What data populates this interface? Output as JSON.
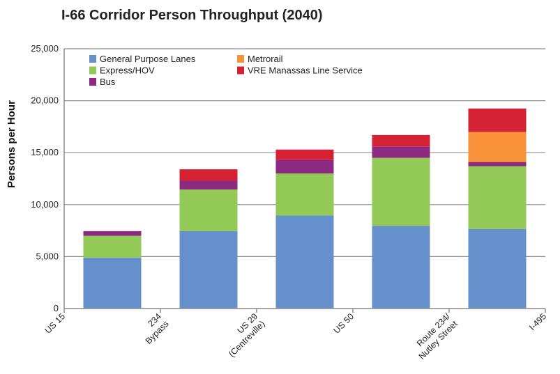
{
  "chart_data": {
    "type": "bar",
    "stacked": true,
    "title": "I-66 Corridor Person Throughput (2040)",
    "xlabel": "",
    "ylabel": "Persons per Hour",
    "ylim": [
      0,
      25000
    ],
    "yticks": [
      0,
      5000,
      10000,
      15000,
      20000,
      25000
    ],
    "ytick_labels": [
      "0",
      "5,000",
      "10,000",
      "15,000",
      "20,000",
      "25,000"
    ],
    "grid": true,
    "legend_position": "top-left",
    "x_tick_labels": [
      [
        "US 15"
      ],
      [
        "234",
        "Bypass"
      ],
      [
        "US 29",
        "(Centreville)"
      ],
      [
        "US 50"
      ],
      [
        "Route 234/",
        "Nutley Street"
      ],
      [
        "I-495"
      ]
    ],
    "segments": [
      "US 15 – 234 Bypass",
      "234 Bypass – US 29",
      "US 29 – US 50",
      "US 50 – Route 234/Nutley Street",
      "Route 234/Nutley Street – I-495"
    ],
    "series": [
      {
        "name": "General Purpose Lanes",
        "color": "#6690cb",
        "values": [
          4900,
          7450,
          8950,
          7950,
          7650
        ]
      },
      {
        "name": "Express/HOV",
        "color": "#92c957",
        "values": [
          2100,
          4000,
          4050,
          6550,
          6050
        ]
      },
      {
        "name": "Bus",
        "color": "#8b2a80",
        "values": [
          450,
          850,
          1300,
          1100,
          400
        ]
      },
      {
        "name": "Metrorail",
        "color": "#f7923a",
        "values": [
          0,
          0,
          0,
          0,
          2900
        ]
      },
      {
        "name": "VRE Manassas Line Service",
        "color": "#d42234",
        "values": [
          0,
          1100,
          1000,
          1100,
          2250
        ]
      }
    ],
    "legend_order": [
      "General Purpose Lanes",
      "Metrorail",
      "Express/HOV",
      "VRE Manassas Line Service",
      "Bus"
    ]
  }
}
